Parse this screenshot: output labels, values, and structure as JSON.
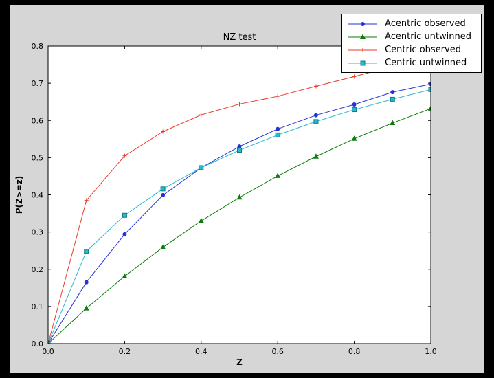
{
  "figure": {
    "frame_color": "#000000",
    "background": "#d6d6d6",
    "plot_background": "#ffffff"
  },
  "legend": {
    "position": "upper right",
    "entries": [
      "Acentric observed",
      "Acentric untwinned",
      "Centric observed",
      "Centric untwinned"
    ]
  },
  "chart_data": {
    "type": "line",
    "title": "NZ test",
    "xlabel": "Z",
    "ylabel": "P(Z>=z)",
    "xlim": [
      0.0,
      1.0
    ],
    "ylim": [
      0.0,
      0.8
    ],
    "xticks": [
      0.0,
      0.2,
      0.4,
      0.6,
      0.8,
      1.0
    ],
    "yticks": [
      0.0,
      0.1,
      0.2,
      0.3,
      0.4,
      0.5,
      0.6,
      0.7,
      0.8
    ],
    "grid": false,
    "legend_position": "upper right",
    "x": [
      0.0,
      0.1,
      0.2,
      0.3,
      0.4,
      0.5,
      0.6,
      0.7,
      0.8,
      0.9,
      1.0
    ],
    "series": [
      {
        "name": "Acentric observed",
        "color": "#2433d2",
        "marker": "circle",
        "values": [
          0.0,
          0.165,
          0.294,
          0.399,
          0.473,
          0.53,
          0.577,
          0.614,
          0.643,
          0.676,
          0.698
        ]
      },
      {
        "name": "Acentric untwinned",
        "color": "#0b7d0b",
        "marker": "triangle",
        "values": [
          0.0,
          0.095,
          0.181,
          0.259,
          0.33,
          0.393,
          0.451,
          0.503,
          0.551,
          0.593,
          0.632
        ]
      },
      {
        "name": "Centric observed",
        "color": "#e8392a",
        "marker": "plus",
        "values": [
          0.0,
          0.385,
          0.505,
          0.57,
          0.615,
          0.644,
          0.665,
          0.692,
          0.718,
          0.745,
          0.765
        ]
      },
      {
        "name": "Centric untwinned",
        "color": "#27b9cc",
        "marker": "square",
        "marker_edge": "#0a7d8c",
        "values": [
          0.0,
          0.248,
          0.345,
          0.416,
          0.473,
          0.52,
          0.561,
          0.597,
          0.629,
          0.657,
          0.683
        ]
      }
    ]
  }
}
